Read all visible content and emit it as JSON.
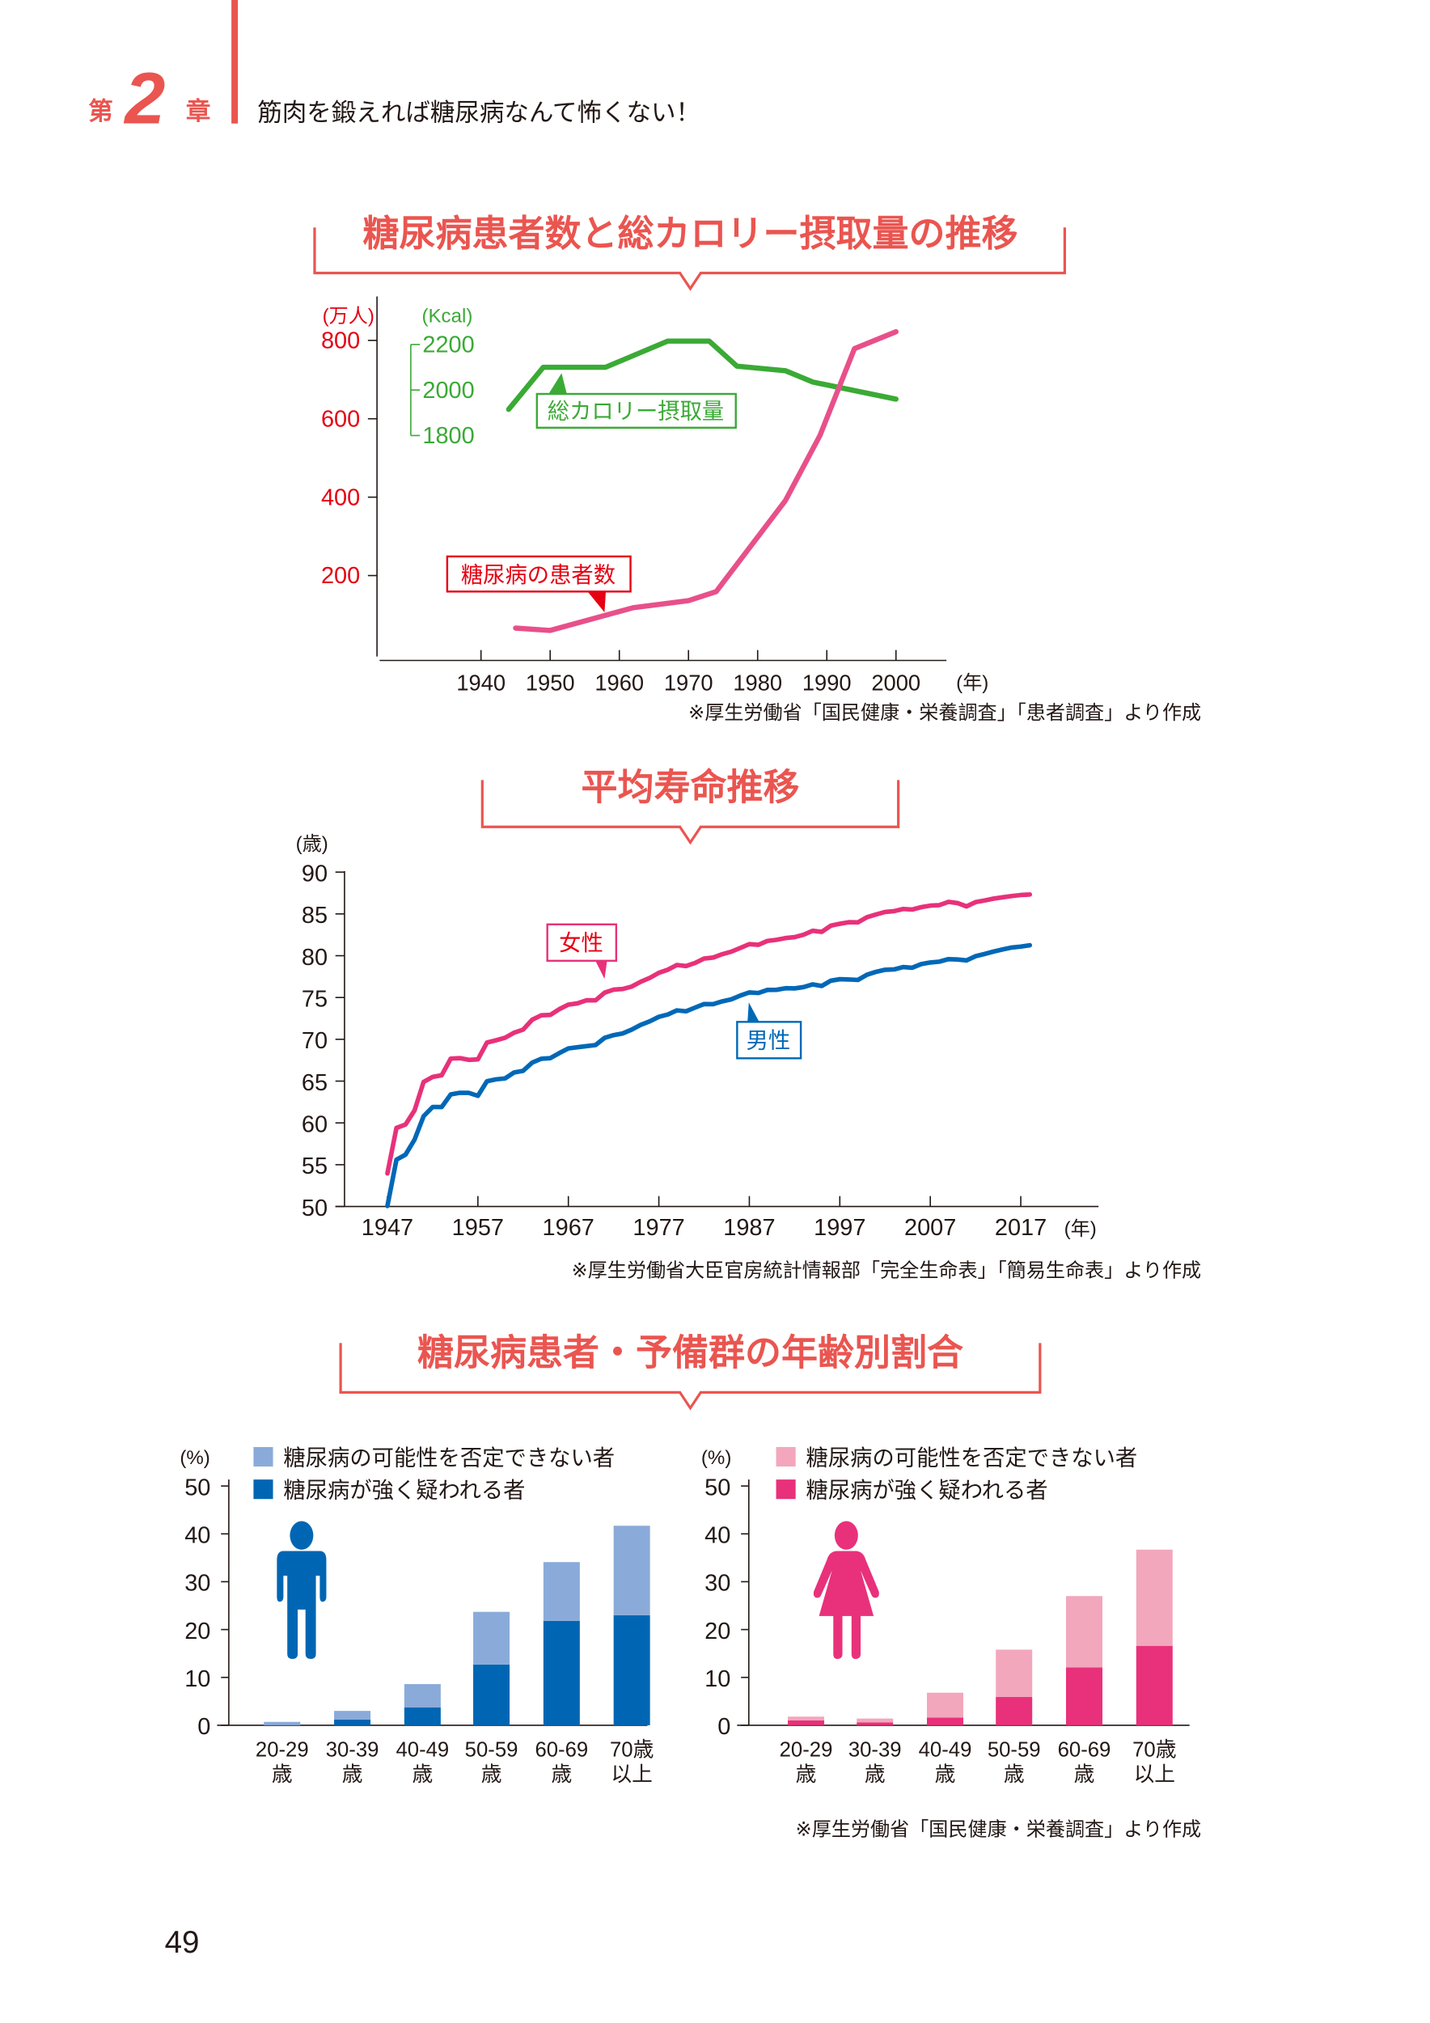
{
  "header": {
    "chapter_prefix": "第",
    "chapter_number": "2",
    "chapter_suffix": "章",
    "title": "筋肉を鍛えれば糖尿病なんて怖くない！"
  },
  "page_number": "49",
  "colors": {
    "accent": "#ea5550",
    "red_axis": "#e60012",
    "kcal_green": "#3aaa35",
    "patients_pink": "#e8508a",
    "female_line": "#e8317a",
    "male_line": "#0068b7",
    "male_dark": "#0066b3",
    "male_light": "#8aabd9",
    "female_dark": "#e8317a",
    "female_light": "#f2a7bd"
  },
  "chart_data": [
    {
      "type": "line",
      "title": "糖尿病患者数と総カロリー摂取量の推移",
      "y_unit": "(万人)",
      "y2_unit": "(Kcal)",
      "x_unit": "(年)",
      "x_ticks": [
        1940,
        1950,
        1960,
        1970,
        1980,
        1990,
        2000
      ],
      "y_ticks": [
        800,
        600,
        400,
        200
      ],
      "y2_ticks": [
        2200,
        2000,
        1800
      ],
      "series": [
        {
          "name": "総カロリー摂取量",
          "axis": "right",
          "color": "#3aaa35",
          "points": [
            [
              1944,
              1915
            ],
            [
              1949,
              2100
            ],
            [
              1958,
              2100
            ],
            [
              1967,
              2215
            ],
            [
              1973,
              2215
            ],
            [
              1977,
              2105
            ],
            [
              1984,
              2085
            ],
            [
              1988,
              2035
            ],
            [
              2000,
              1960
            ]
          ]
        },
        {
          "name": "糖尿病の患者数",
          "axis": "left",
          "color": "#e8508a",
          "points": [
            [
              1945,
              66
            ],
            [
              1950,
              60
            ],
            [
              1962,
              118
            ],
            [
              1970,
              136
            ],
            [
              1974,
              159
            ],
            [
              1984,
              391
            ],
            [
              1989,
              557
            ],
            [
              1994,
              779
            ],
            [
              2000,
              822
            ]
          ]
        }
      ],
      "source": "※厚生労働省「国民健康・栄養調査」「患者調査」より作成"
    },
    {
      "type": "line",
      "title": "平均寿命推移",
      "y_unit": "(歳)",
      "x_unit": "(年)",
      "x_ticks": [
        1947,
        1957,
        1967,
        1977,
        1987,
        1997,
        2007,
        2017
      ],
      "y_ticks": [
        90,
        85,
        80,
        75,
        70,
        65,
        60,
        55,
        50
      ],
      "ylim": [
        50,
        90
      ],
      "x_start": 1947,
      "series": [
        {
          "name": "女性",
          "color": "#e8317a",
          "values": [
            53.96,
            59.4,
            59.8,
            61.5,
            64.9,
            65.5,
            65.7,
            67.69,
            67.75,
            67.54,
            67.6,
            69.61,
            69.88,
            70.19,
            70.79,
            71.16,
            72.34,
            72.87,
            72.92,
            73.61,
            74.15,
            74.3,
            74.67,
            74.66,
            75.58,
            75.94,
            76.02,
            76.31,
            76.89,
            77.35,
            77.95,
            78.33,
            78.89,
            78.76,
            79.13,
            79.66,
            79.78,
            80.18,
            80.48,
            80.93,
            81.39,
            81.3,
            81.77,
            81.9,
            82.11,
            82.22,
            82.51,
            82.98,
            82.85,
            83.59,
            83.82,
            84.01,
            83.99,
            84.6,
            84.93,
            85.23,
            85.33,
            85.59,
            85.52,
            85.81,
            85.99,
            86.05,
            86.44,
            86.3,
            85.9,
            86.41,
            86.61,
            86.83,
            86.99,
            87.14,
            87.26,
            87.32
          ]
        },
        {
          "name": "男性",
          "color": "#0068b7",
          "values": [
            50.06,
            55.6,
            56.2,
            58.0,
            60.8,
            61.9,
            61.9,
            63.41,
            63.6,
            63.59,
            63.24,
            64.98,
            65.21,
            65.32,
            66.03,
            66.23,
            67.21,
            67.67,
            67.74,
            68.35,
            68.91,
            69.05,
            69.18,
            69.31,
            70.17,
            70.5,
            70.7,
            71.16,
            71.73,
            72.15,
            72.69,
            72.97,
            73.46,
            73.35,
            73.79,
            74.22,
            74.2,
            74.54,
            74.78,
            75.23,
            75.61,
            75.54,
            75.91,
            75.92,
            76.11,
            76.09,
            76.25,
            76.57,
            76.38,
            77.01,
            77.19,
            77.16,
            77.1,
            77.72,
            78.07,
            78.32,
            78.36,
            78.64,
            78.56,
            79.0,
            79.19,
            79.29,
            79.59,
            79.55,
            79.44,
            79.94,
            80.21,
            80.5,
            80.75,
            80.98,
            81.09,
            81.25
          ]
        }
      ],
      "source": "※厚生労働省大臣官房統計情報部「完全生命表」「簡易生命表」より作成"
    },
    {
      "type": "bar",
      "stacked": true,
      "title": "糖尿病患者・予備群の年齢別割合",
      "y_unit": "(%)",
      "y_ticks": [
        50,
        40,
        30,
        20,
        10,
        0
      ],
      "ylim": [
        0,
        50
      ],
      "categories": [
        [
          "20-29",
          "歳"
        ],
        [
          "30-39",
          "歳"
        ],
        [
          "40-49",
          "歳"
        ],
        [
          "50-59",
          "歳"
        ],
        [
          "60-69",
          "歳"
        ],
        [
          "70歳",
          "以上"
        ]
      ],
      "panels": [
        {
          "group": "男性",
          "icon": "male-figure-icon",
          "series": [
            {
              "name": "糖尿病が強く疑われる者",
              "color": "#0066b3",
              "values": [
                0,
                1.2,
                3.7,
                12.7,
                21.8,
                23.0
              ]
            },
            {
              "name": "糖尿病の可能性を否定できない者",
              "color": "#8aabd9",
              "values": [
                0.7,
                1.8,
                4.9,
                11.0,
                12.3,
                18.7
              ]
            }
          ]
        },
        {
          "group": "女性",
          "icon": "female-figure-icon",
          "series": [
            {
              "name": "糖尿病が強く疑われる者",
              "color": "#e8317a",
              "values": [
                1.0,
                0.6,
                1.6,
                5.9,
                12.1,
                16.6
              ]
            },
            {
              "name": "糖尿病の可能性を否定できない者",
              "color": "#f2a7bd",
              "values": [
                0.8,
                0.8,
                5.2,
                9.9,
                14.9,
                20.1
              ]
            }
          ]
        }
      ],
      "source": "※厚生労働省「国民健康・栄養調査」より作成"
    }
  ]
}
